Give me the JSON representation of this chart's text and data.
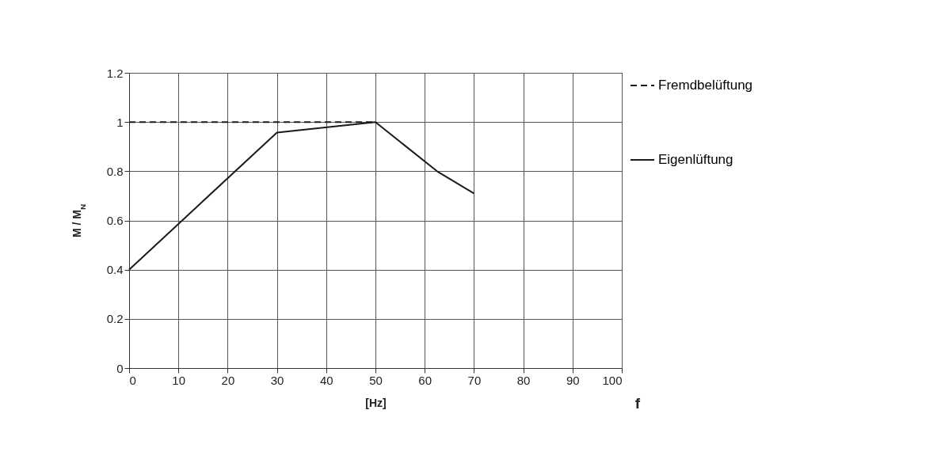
{
  "chart_data": {
    "type": "line",
    "xlabel": "[Hz]",
    "ylabel": "M / M$_{N}$",
    "annotations": [
      "f"
    ],
    "xlim": [
      0,
      100
    ],
    "xticks": [
      0,
      10,
      20,
      30,
      40,
      50,
      60,
      70,
      80,
      90,
      100
    ],
    "ylim": [
      0,
      1.2
    ],
    "yticks": [
      0,
      0.2,
      0.4,
      0.6,
      0.8,
      1,
      1.2
    ],
    "grid": true,
    "legend": "right",
    "marker": "none",
    "series": [
      {
        "name": "Fremdbelüftung",
        "color": "#1a1a1a",
        "line_style": "dashed",
        "x": [
          0,
          50
        ],
        "values": [
          1,
          1
        ]
      },
      {
        "name": "Eigenlüftung",
        "color": "#1a1a1a",
        "line_style": "solid",
        "x": [
          0,
          30,
          50,
          62.5,
          70
        ],
        "values": [
          0.4,
          0.957,
          1,
          0.8,
          0.71
        ]
      }
    ]
  }
}
